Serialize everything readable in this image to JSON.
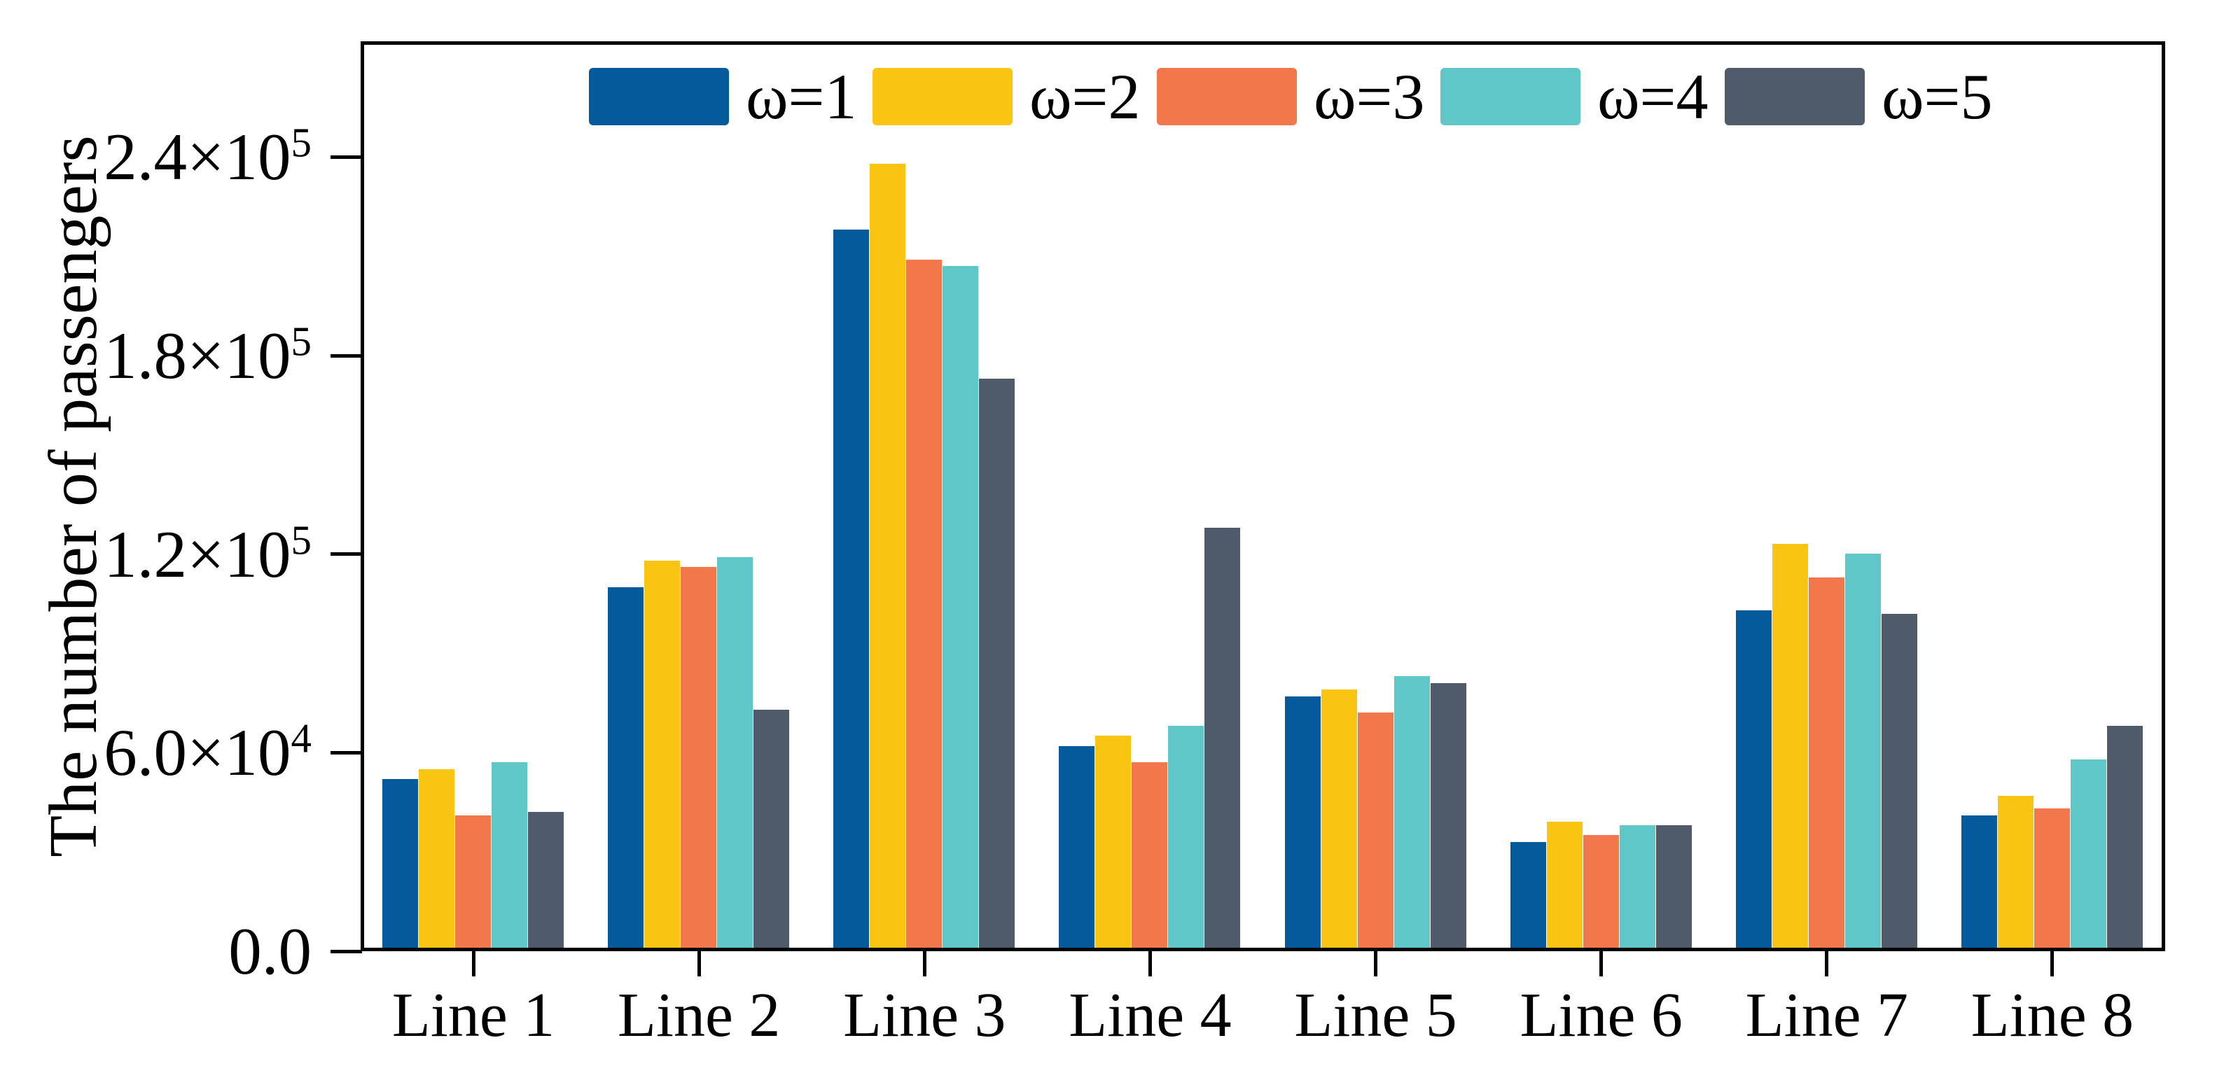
{
  "chart_data": {
    "type": "bar",
    "title": "",
    "xlabel": "",
    "ylabel": "The number of passengers",
    "ylim": [
      0,
      275000
    ],
    "grid": false,
    "legend_position": "top-inside-horizontal",
    "categories": [
      "Line 1",
      "Line 2",
      "Line 3",
      "Line 4",
      "Line 5",
      "Line 6",
      "Line 7",
      "Line 8"
    ],
    "series": [
      {
        "name": "ω=1",
        "color": "#055a9b",
        "values": [
          51000,
          109000,
          217000,
          61000,
          76000,
          32000,
          102000,
          40000
        ]
      },
      {
        "name": "ω=2",
        "color": "#fac413",
        "values": [
          54000,
          117000,
          237000,
          64000,
          78000,
          38000,
          122000,
          46000
        ]
      },
      {
        "name": "ω=3",
        "color": "#f2774b",
        "values": [
          40000,
          115000,
          208000,
          56000,
          71000,
          34000,
          112000,
          42000
        ]
      },
      {
        "name": "ω=4",
        "color": "#5fc7c7",
        "values": [
          56000,
          118000,
          206000,
          67000,
          82000,
          37000,
          119000,
          57000
        ]
      },
      {
        "name": "ω=5",
        "color": "#4f5a6b",
        "values": [
          41000,
          72000,
          172000,
          127000,
          80000,
          37000,
          101000,
          67000
        ]
      }
    ],
    "yticks": [
      {
        "value": 0,
        "label": "0.0",
        "sup": ""
      },
      {
        "value": 60000,
        "label": "6.0×10",
        "sup": "4"
      },
      {
        "value": 120000,
        "label": "1.2×10",
        "sup": "5"
      },
      {
        "value": 180000,
        "label": "1.8×10",
        "sup": "5"
      },
      {
        "value": 240000,
        "label": "2.4×10",
        "sup": "5"
      }
    ],
    "axis_color": "#000000",
    "background_color": "#ffffff"
  }
}
